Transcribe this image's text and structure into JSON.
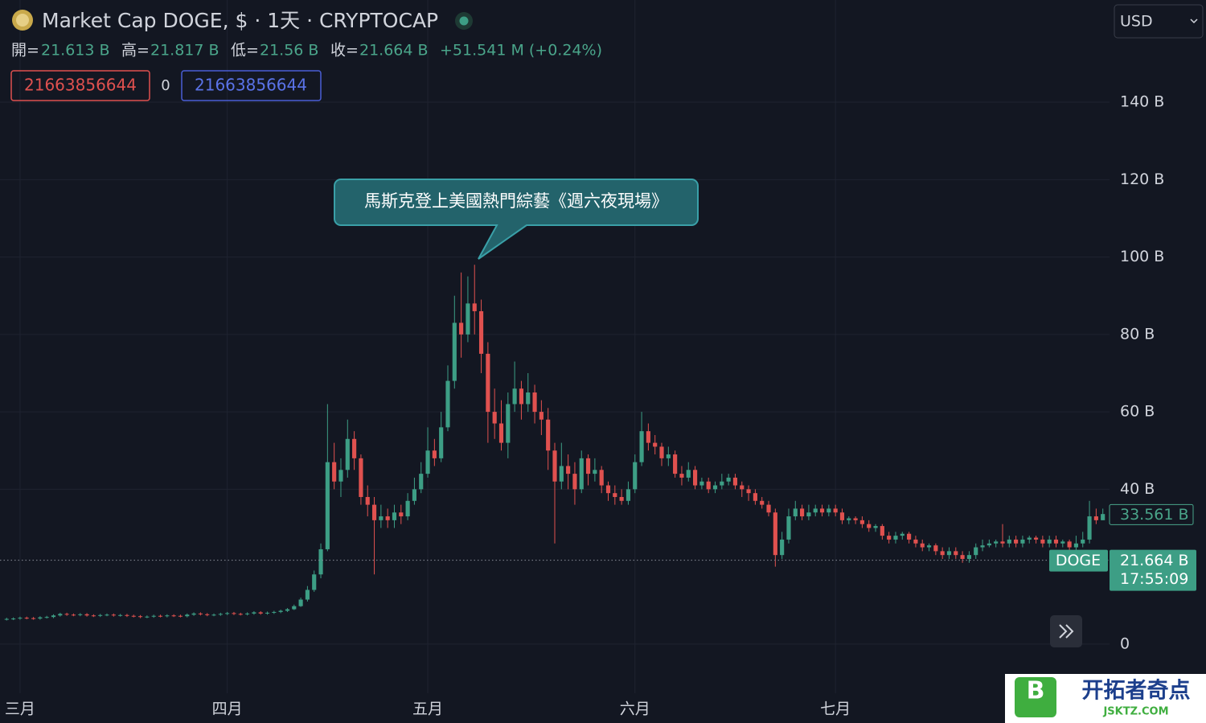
{
  "chart_data": {
    "type": "candlestick",
    "title": "Market Cap DOGE, $ · 1天 · CRYPTOCAP",
    "currency": "USD",
    "legend": [
      {
        "label": "開=",
        "value": "21.613 B"
      },
      {
        "label": "高=",
        "value": "21.817 B"
      },
      {
        "label": "低=",
        "value": "21.56 B"
      },
      {
        "label": "收=",
        "value": "21.664 B"
      }
    ],
    "change": "+51.541 M (+0.24%)",
    "indicator": [
      "21663856644",
      "0",
      "21663856644"
    ],
    "annotation": "馬斯克登上美國熱門綜藝《週六夜現場》",
    "up_color": "#3d9e85",
    "down_color": "#e0514f",
    "open": [
      6.4,
      6.5,
      6.6,
      6.8,
      6.7,
      6.6,
      6.9,
      7.0,
      7.4,
      7.8,
      7.6,
      7.5,
      7.7,
      7.4,
      7.3,
      7.5,
      7.6,
      7.4,
      7.5,
      7.3,
      7.2,
      7.0,
      7.1,
      7.3,
      7.2,
      7.4,
      7.3,
      7.2,
      7.6,
      7.9,
      7.7,
      7.5,
      7.6,
      7.8,
      8.0,
      7.8,
      7.7,
      7.9,
      8.2,
      7.9,
      8.1,
      8.3,
      8.6,
      9.0,
      9.8,
      11.5,
      14,
      18,
      24.5,
      47,
      42,
      45,
      53,
      48,
      38,
      36,
      32,
      33,
      32,
      34,
      33,
      37,
      40,
      44,
      50,
      48,
      56,
      68,
      83,
      80,
      88,
      86,
      75,
      60,
      57,
      52,
      62,
      66,
      62,
      65,
      60,
      58,
      50,
      42,
      46,
      44,
      40,
      48,
      44,
      45,
      41,
      39,
      38,
      37,
      40,
      47,
      55,
      52,
      51,
      48,
      49,
      44,
      43,
      45,
      41,
      42,
      40,
      41,
      42,
      43,
      41,
      40,
      39,
      37,
      36,
      34,
      23,
      27,
      33,
      35,
      33,
      34,
      35,
      34,
      35,
      34,
      32,
      32.5,
      32,
      31,
      30,
      30.5,
      28,
      27,
      28,
      28.5,
      27,
      26,
      25,
      25.5,
      24,
      23,
      24,
      23,
      22,
      23,
      25,
      25.5,
      26,
      26.5,
      26,
      27,
      26,
      27,
      27.5,
      27,
      26,
      27,
      26,
      26.5,
      25,
      26,
      27,
      33,
      32
    ],
    "high": [
      6.8,
      6.9,
      7.1,
      7.1,
      7.0,
      7.2,
      7.3,
      7.7,
      8.1,
      8.1,
      7.9,
      8.0,
      8.0,
      7.7,
      7.8,
      7.9,
      7.9,
      7.8,
      7.8,
      7.6,
      7.5,
      7.4,
      7.6,
      7.6,
      7.7,
      7.7,
      7.6,
      7.9,
      8.2,
      8.2,
      8.0,
      7.9,
      8.1,
      8.3,
      8.3,
      8.1,
      8.2,
      8.5,
      8.5,
      8.4,
      8.6,
      8.9,
      9.3,
      10.2,
      12,
      15,
      19,
      26,
      62,
      52,
      48,
      58,
      55,
      49,
      41,
      38,
      36,
      35,
      36,
      36,
      39,
      43,
      47,
      56,
      53,
      60,
      72,
      90,
      96,
      95,
      98,
      89,
      78,
      66,
      63,
      65,
      73,
      68,
      70,
      67,
      63,
      61,
      52,
      52,
      49,
      47,
      50,
      49,
      48,
      46,
      42,
      41,
      40,
      42,
      49,
      60,
      57,
      54,
      52,
      51,
      50,
      46,
      47,
      46,
      43,
      43,
      42,
      44,
      44,
      44,
      42,
      41,
      40,
      38,
      37,
      35,
      29,
      35,
      37,
      36,
      36,
      36,
      36,
      36,
      36,
      35,
      33,
      33,
      33,
      32,
      31,
      31,
      29,
      29,
      29,
      29,
      28,
      27,
      26,
      26,
      25,
      25,
      25,
      24,
      24,
      26,
      27,
      27,
      27,
      31,
      28,
      28,
      28,
      28,
      28,
      28,
      28,
      28,
      27,
      27,
      28,
      29,
      37,
      35,
      35
    ],
    "low": [
      6.1,
      6.2,
      6.3,
      6.4,
      6.3,
      6.3,
      6.6,
      6.7,
      7.1,
      7.3,
      7.2,
      7.2,
      7.1,
      7.0,
      7.0,
      7.2,
      7.1,
      7.1,
      7.0,
      6.9,
      6.7,
      6.7,
      6.8,
      6.9,
      6.9,
      7.0,
      6.9,
      6.9,
      7.3,
      7.4,
      7.2,
      7.2,
      7.3,
      7.5,
      7.5,
      7.4,
      7.4,
      7.6,
      7.6,
      7.6,
      7.8,
      8.0,
      8.3,
      8.8,
      9.6,
      11,
      13.5,
      17,
      24,
      40,
      38,
      43,
      45,
      36,
      33,
      18,
      30,
      30,
      30,
      31,
      32,
      36,
      39,
      43,
      46,
      47,
      55,
      66,
      74,
      78,
      80,
      70,
      52,
      53,
      50,
      48,
      60,
      58,
      60,
      57,
      54,
      45,
      26,
      40,
      40,
      36,
      39,
      41,
      42,
      39,
      37,
      36,
      36,
      36,
      39,
      46,
      50,
      49,
      46,
      46,
      43,
      41,
      42,
      40,
      40,
      39,
      39,
      40,
      41,
      40,
      38,
      37,
      36,
      35,
      33,
      20,
      22,
      26,
      32,
      32,
      32,
      33,
      33,
      33,
      33,
      31,
      31,
      31,
      30,
      29,
      29,
      27,
      26,
      26,
      27,
      26,
      25,
      24,
      24,
      23,
      22,
      22,
      22,
      21,
      21,
      22,
      24,
      25,
      25,
      25,
      25,
      25,
      25,
      26,
      26,
      25,
      25,
      25,
      25,
      24,
      24,
      25,
      26,
      31,
      32
    ],
    "close": [
      6.5,
      6.6,
      6.8,
      6.7,
      6.6,
      6.9,
      7.0,
      7.4,
      7.8,
      7.6,
      7.5,
      7.7,
      7.4,
      7.3,
      7.5,
      7.6,
      7.4,
      7.5,
      7.3,
      7.2,
      7.0,
      7.1,
      7.3,
      7.2,
      7.4,
      7.3,
      7.2,
      7.6,
      7.9,
      7.7,
      7.5,
      7.6,
      7.8,
      8.0,
      7.8,
      7.7,
      7.9,
      8.2,
      7.9,
      8.1,
      8.3,
      8.6,
      9.0,
      9.8,
      11.5,
      14,
      18,
      24.5,
      47,
      42,
      45,
      53,
      48,
      38,
      36,
      32,
      33,
      32,
      34,
      33,
      37,
      40,
      44,
      50,
      48,
      56,
      68,
      83,
      80,
      88,
      86,
      75,
      60,
      57,
      52,
      62,
      66,
      62,
      65,
      60,
      58,
      50,
      42,
      46,
      44,
      40,
      48,
      44,
      45,
      41,
      39,
      38,
      37,
      40,
      47,
      55,
      52,
      51,
      48,
      49,
      44,
      43,
      45,
      41,
      42,
      40,
      41,
      42,
      43,
      41,
      40,
      39,
      37,
      36,
      34,
      23,
      27,
      33,
      35,
      33,
      34,
      35,
      34,
      35,
      34,
      32,
      32.5,
      32,
      31,
      30,
      30.5,
      28,
      27,
      28,
      28.5,
      27,
      26,
      25,
      25.5,
      24,
      23,
      24,
      23,
      22,
      23,
      25,
      25.5,
      26,
      26.5,
      26,
      27,
      26,
      27,
      27.5,
      27,
      26,
      27,
      26,
      26.5,
      25,
      26,
      27,
      33,
      32,
      33.6
    ],
    "xlim": [
      -1,
      165
    ],
    "xticks": [
      {
        "value": 2,
        "label": "三月"
      },
      {
        "value": 33,
        "label": "四月"
      },
      {
        "value": 63,
        "label": "五月"
      },
      {
        "value": 94,
        "label": "六月"
      },
      {
        "value": 124,
        "label": "七月"
      }
    ],
    "ylim": [
      -12.7,
      166.4
    ],
    "yticks": [
      0,
      {
        "value": 40,
        "label": "40 B"
      },
      {
        "value": 60,
        "label": "60 B"
      },
      {
        "value": 80,
        "label": "80 B"
      },
      {
        "value": 100,
        "label": "100 B"
      },
      {
        "value": 120,
        "label": "120 B"
      },
      {
        "value": 140,
        "label": "140 B"
      }
    ],
    "last_value": {
      "value": 33.561,
      "label": "33.561 B"
    },
    "price_line": {
      "value": 21.664,
      "label": "21.664 B",
      "symbol": "DOGE",
      "time": "17:55:09"
    },
    "grid": true
  },
  "watermark": {
    "name": "开拓者奇点",
    "url": "JSKTZ.COM"
  }
}
